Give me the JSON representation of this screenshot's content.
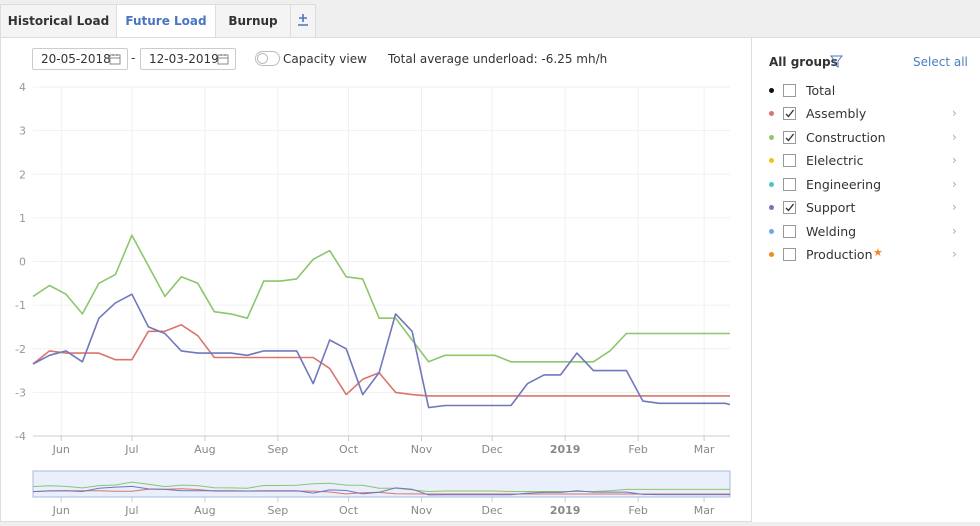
{
  "tabs": {
    "items": [
      "Historical Load",
      "Future Load",
      "Burnup"
    ],
    "active": 1
  },
  "controls": {
    "date_from": "20-05-2018",
    "date_separator": "-",
    "date_to": "12-03-2019",
    "toggle_label": "Capacity view",
    "toggle_on": false,
    "summary": "Total average underload: -6.25 mh/h"
  },
  "sidebar": {
    "title": "All groups",
    "select_all": "Select all",
    "groups": [
      {
        "name": "Total",
        "color": "#111111",
        "checked": false
      },
      {
        "name": "Elelectric",
        "color": "#f2c21b",
        "checked": false
      },
      {
        "name": "Engineering",
        "color": "#4cc3c9",
        "checked": false
      },
      {
        "name": "Welding",
        "color": "#6aa8e8",
        "checked": false
      },
      {
        "name": "Production",
        "color": "#f08a24",
        "checked": false
      }
    ]
  },
  "chart_data": {
    "type": "line",
    "x": [
      "2018-05-20",
      "2018-05-27",
      "2018-06-03",
      "2018-06-10",
      "2018-06-17",
      "2018-06-24",
      "2018-07-01",
      "2018-07-08",
      "2018-07-15",
      "2018-07-22",
      "2018-07-29",
      "2018-08-05",
      "2018-08-12",
      "2018-08-19",
      "2018-08-26",
      "2018-09-02",
      "2018-09-09",
      "2018-09-16",
      "2018-09-23",
      "2018-09-30",
      "2018-10-07",
      "2018-10-14",
      "2018-10-21",
      "2018-10-28",
      "2018-11-04",
      "2018-11-11",
      "2018-11-18",
      "2018-11-25",
      "2018-12-02",
      "2018-12-09",
      "2018-12-16",
      "2018-12-23",
      "2018-12-30",
      "2019-01-06",
      "2019-01-13",
      "2019-01-20",
      "2019-01-27",
      "2019-02-03",
      "2019-02-10",
      "2019-02-17",
      "2019-02-24",
      "2019-03-03",
      "2019-03-10",
      "2019-03-12"
    ],
    "series": [
      {
        "name": "Assembly",
        "color": "#d9756f",
        "checked": true,
        "values": [
          -2.35,
          -2.05,
          -2.1,
          -2.1,
          -2.1,
          -2.25,
          -2.25,
          -1.6,
          -1.6,
          -1.45,
          -1.7,
          -2.2,
          -2.2,
          -2.2,
          -2.2,
          -2.2,
          -2.2,
          -2.2,
          -2.45,
          -3.05,
          -2.7,
          -2.55,
          -3.0,
          -3.05,
          -3.08,
          -3.08,
          -3.08,
          -3.08,
          -3.08,
          -3.08,
          -3.08,
          -3.08,
          -3.08,
          -3.08,
          -3.08,
          -3.08,
          -3.08,
          -3.08,
          -3.08,
          -3.08,
          -3.08,
          -3.08,
          -3.08,
          -3.08
        ]
      },
      {
        "name": "Construction",
        "color": "#8cc66d",
        "checked": true,
        "values": [
          -0.8,
          -0.55,
          -0.75,
          -1.2,
          -0.5,
          -0.3,
          0.6,
          -0.1,
          -0.8,
          -0.35,
          -0.5,
          -1.15,
          -1.2,
          -1.3,
          -0.45,
          -0.45,
          -0.4,
          0.05,
          0.25,
          -0.35,
          -0.4,
          -1.3,
          -1.3,
          -1.8,
          -2.3,
          -2.15,
          -2.15,
          -2.15,
          -2.15,
          -2.3,
          -2.3,
          -2.3,
          -2.3,
          -2.3,
          -2.3,
          -2.05,
          -1.65,
          -1.65,
          -1.65,
          -1.65,
          -1.65,
          -1.65,
          -1.65,
          -1.65
        ]
      },
      {
        "name": "Support",
        "color": "#7078bb",
        "checked": true,
        "values": [
          -2.35,
          -2.15,
          -2.05,
          -2.3,
          -1.3,
          -0.95,
          -0.75,
          -1.5,
          -1.65,
          -2.05,
          -2.1,
          -2.1,
          -2.1,
          -2.15,
          -2.05,
          -2.05,
          -2.05,
          -2.8,
          -1.8,
          -2.0,
          -3.05,
          -2.55,
          -1.2,
          -1.6,
          -3.35,
          -3.3,
          -3.3,
          -3.3,
          -3.3,
          -3.3,
          -2.8,
          -2.6,
          -2.6,
          -2.1,
          -2.5,
          -2.5,
          -2.5,
          -3.2,
          -3.25,
          -3.25,
          -3.25,
          -3.25,
          -3.25,
          -3.28
        ]
      }
    ],
    "xlim": [
      "2018-05-20",
      "2019-03-12"
    ],
    "xticks": [
      {
        "value": "2018-06-01",
        "label": "Jun"
      },
      {
        "value": "2018-07-01",
        "label": "Jul"
      },
      {
        "value": "2018-08-01",
        "label": "Aug"
      },
      {
        "value": "2018-09-01",
        "label": "Sep"
      },
      {
        "value": "2018-10-01",
        "label": "Oct"
      },
      {
        "value": "2018-11-01",
        "label": "Nov"
      },
      {
        "value": "2018-12-01",
        "label": "Dec"
      },
      {
        "value": "2019-01-01",
        "label": "2019"
      },
      {
        "value": "2019-02-01",
        "label": "Feb"
      },
      {
        "value": "2019-03-01",
        "label": "Mar"
      }
    ],
    "ylim": [
      -4,
      4
    ],
    "yticks": [
      4,
      3,
      2,
      1,
      0,
      -1,
      -2,
      -3,
      -4
    ],
    "grid": true
  }
}
